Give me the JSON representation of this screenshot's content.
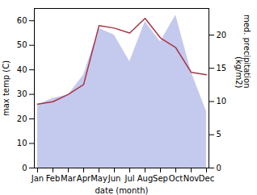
{
  "chart_data": {
    "type": "line",
    "categories": [
      "Jan",
      "Feb",
      "Mar",
      "Apr",
      "May",
      "Jun",
      "Jul",
      "Aug",
      "Sep",
      "Oct",
      "Nov",
      "Dec"
    ],
    "series": [
      {
        "type": "area",
        "axis": "y2",
        "color": "#b0b8e8",
        "values": [
          9.5,
          10.5,
          11,
          14,
          21,
          20,
          16,
          22,
          19,
          23,
          14.5,
          8.5
        ]
      },
      {
        "type": "line",
        "color": "#aa3344",
        "values": [
          26,
          27,
          30,
          34,
          58,
          57,
          55,
          61,
          53,
          49,
          39,
          38
        ]
      }
    ],
    "xlabel": "date (month)",
    "ylabel": "max temp (C)",
    "y2label": "med. precipitation\n(kg/m2)",
    "ylim": [
      0,
      65
    ],
    "yticks": [
      0,
      10,
      20,
      30,
      40,
      50,
      60
    ],
    "y2lim": [
      0,
      24
    ],
    "y2ticks": [
      0,
      5,
      10,
      15,
      20
    ],
    "grid": false
  }
}
